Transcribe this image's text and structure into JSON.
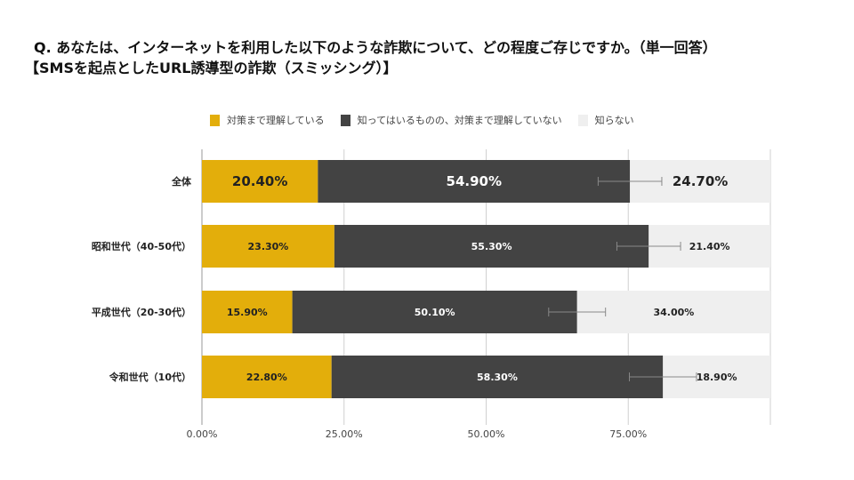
{
  "title_line1": "Q. あなたは、インターネットを利用した以下のような詐欺について、どの程度ご存じですか。（単一回答）",
  "title_line2": "【SMSを起点としたURL誘導型の詐欺（スミッシング）】",
  "chart_data": {
    "type": "bar",
    "orientation": "horizontal",
    "stacked": true,
    "categories": [
      "全体",
      "昭和世代（40-50代）",
      "平成世代（20-30代）",
      "令和世代（10代）"
    ],
    "series": [
      {
        "name": "対策まで理解している",
        "color": "#E3AE0B",
        "values": [
          20.4,
          23.3,
          15.9,
          22.8
        ],
        "labels": [
          "20.40%",
          "23.30%",
          "15.90%",
          "22.80%"
        ]
      },
      {
        "name": "知ってはいるものの、対策まで理解していない",
        "color": "#434343",
        "values": [
          54.9,
          55.3,
          50.1,
          58.3
        ],
        "labels": [
          "54.90%",
          "55.30%",
          "50.10%",
          "58.30%"
        ]
      },
      {
        "name": "知らない",
        "color": "#EFEFEF",
        "values": [
          24.7,
          21.4,
          34.0,
          18.9
        ],
        "labels": [
          "24.70%",
          "21.40%",
          "34.00%",
          "18.90%"
        ]
      }
    ],
    "error_bars": [
      5.6,
      5.6,
      5.0,
      5.9
    ],
    "xlim": [
      0,
      100
    ],
    "xticks": [
      "0.00%",
      "25.00%",
      "50.00%",
      "75.00%"
    ],
    "grid": true,
    "legend": "top"
  }
}
